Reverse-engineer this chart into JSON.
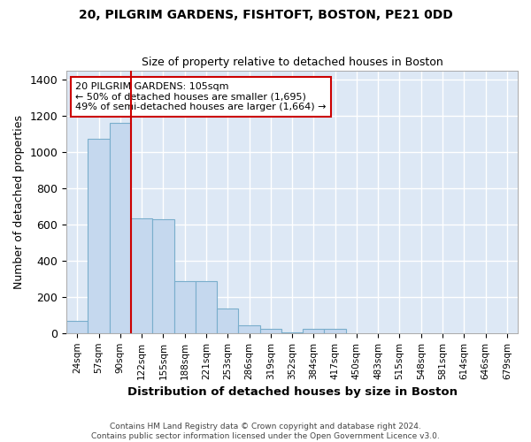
{
  "title_line1": "20, PILGRIM GARDENS, FISHTOFT, BOSTON, PE21 0DD",
  "title_line2": "Size of property relative to detached houses in Boston",
  "xlabel": "Distribution of detached houses by size in Boston",
  "ylabel": "Number of detached properties",
  "categories": [
    "24sqm",
    "57sqm",
    "90sqm",
    "122sqm",
    "155sqm",
    "188sqm",
    "221sqm",
    "253sqm",
    "286sqm",
    "319sqm",
    "352sqm",
    "384sqm",
    "417sqm",
    "450sqm",
    "483sqm",
    "515sqm",
    "548sqm",
    "581sqm",
    "614sqm",
    "646sqm",
    "679sqm"
  ],
  "values": [
    65,
    1070,
    1160,
    635,
    630,
    285,
    285,
    135,
    45,
    25,
    5,
    22,
    22,
    0,
    0,
    0,
    0,
    0,
    0,
    0,
    0
  ],
  "bar_color": "#c5d8ee",
  "bar_edge_color": "#7aaecc",
  "vline_x": 2.5,
  "vline_color": "#cc0000",
  "annotation_text": "20 PILGRIM GARDENS: 105sqm\n← 50% of detached houses are smaller (1,695)\n49% of semi-detached houses are larger (1,664) →",
  "annotation_box_color": "#cc0000",
  "ylim": [
    0,
    1450
  ],
  "background_color": "#dde8f5",
  "grid_color": "#ffffff",
  "fig_bg": "#ffffff",
  "footnote": "Contains HM Land Registry data © Crown copyright and database right 2024.\nContains public sector information licensed under the Open Government Licence v3.0."
}
